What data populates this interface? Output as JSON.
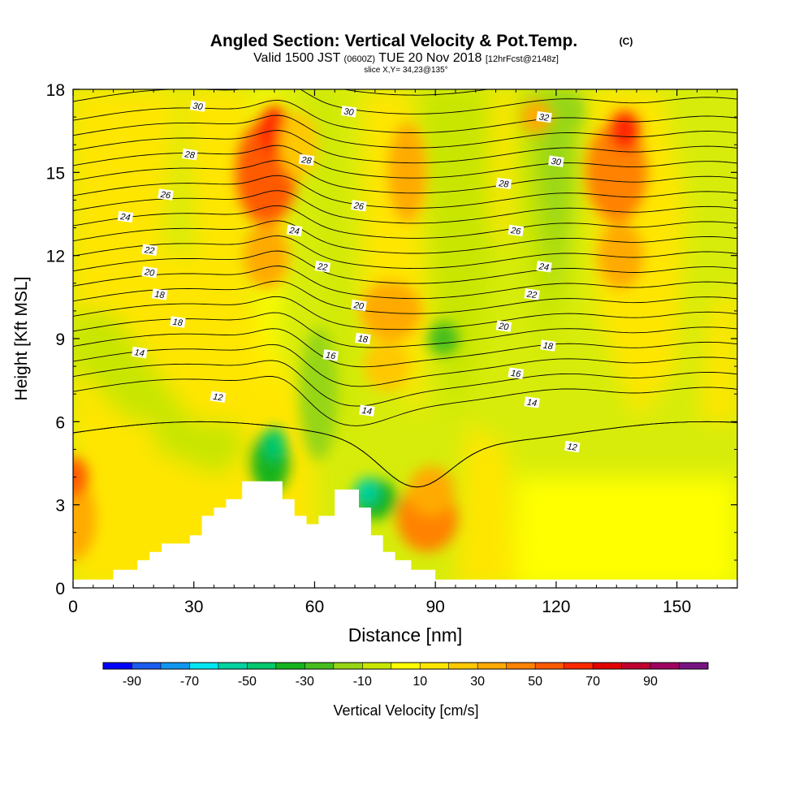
{
  "title": "Angled Section: Vertical Velocity & Pot.Temp.",
  "title_mark": "(C)",
  "subtitle_parts": [
    "Valid 1500 JST",
    "(0600Z)",
    "TUE 20 Nov 2018",
    "[12hrFcst@2148z]"
  ],
  "slice_label": "slice X,Y= 34,23@135°",
  "chart_data": {
    "type": "heatmap",
    "xlabel": "Distance [nm]",
    "ylabel": "Height [Kft MSL]",
    "xlim": [
      0,
      165
    ],
    "ylim": [
      0,
      18
    ],
    "x_ticks": [
      "0",
      "30",
      "60",
      "90",
      "120",
      "150"
    ],
    "y_ticks": [
      "0",
      "3",
      "6",
      "9",
      "12",
      "15",
      "18"
    ],
    "colorbar": {
      "label": "Vertical Velocity [cm/s]",
      "tick_labels": [
        "-90",
        "-70",
        "-50",
        "-30",
        "-10",
        "10",
        "30",
        "50",
        "70",
        "90"
      ],
      "levels": [
        -100,
        -90,
        -80,
        -70,
        -60,
        -50,
        -40,
        -30,
        -20,
        -10,
        0,
        10,
        20,
        30,
        40,
        50,
        60,
        70,
        80,
        90,
        100
      ],
      "colors": [
        "#0000ff",
        "#1a5cf0",
        "#0f96f0",
        "#00e6f0",
        "#00d2a0",
        "#00c86e",
        "#14b41e",
        "#46be1e",
        "#96d614",
        "#c8e600",
        "#ffff00",
        "#ffe600",
        "#ffc800",
        "#ffaa00",
        "#ff8200",
        "#ff5a00",
        "#ff2800",
        "#e00000",
        "#c00030",
        "#a00060",
        "#781482"
      ]
    },
    "theta_contours": {
      "units": "C",
      "levels": [
        12,
        14,
        16,
        18,
        20,
        22,
        24,
        26,
        28,
        30,
        32
      ],
      "labels": [
        {
          "text": "30",
          "x": 31,
          "y": 17.4
        },
        {
          "text": "28",
          "x": 29,
          "y": 15.65
        },
        {
          "text": "26",
          "x": 23,
          "y": 14.2
        },
        {
          "text": "24",
          "x": 13,
          "y": 13.4
        },
        {
          "text": "22",
          "x": 19,
          "y": 12.2
        },
        {
          "text": "20",
          "x": 19,
          "y": 11.4
        },
        {
          "text": "18",
          "x": 21.5,
          "y": 10.6
        },
        {
          "text": "18",
          "x": 26,
          "y": 9.6
        },
        {
          "text": "14",
          "x": 16.5,
          "y": 8.5
        },
        {
          "text": "12",
          "x": 36,
          "y": 6.9
        },
        {
          "text": "30",
          "x": 68.5,
          "y": 17.2
        },
        {
          "text": "28",
          "x": 58,
          "y": 15.45
        },
        {
          "text": "26",
          "x": 71,
          "y": 13.8
        },
        {
          "text": "24",
          "x": 55,
          "y": 12.9
        },
        {
          "text": "22",
          "x": 62,
          "y": 11.6
        },
        {
          "text": "20",
          "x": 71,
          "y": 10.2
        },
        {
          "text": "18",
          "x": 72,
          "y": 9.0
        },
        {
          "text": "16",
          "x": 64,
          "y": 8.4
        },
        {
          "text": "14",
          "x": 73,
          "y": 6.4
        },
        {
          "text": "32",
          "x": 117,
          "y": 17.0
        },
        {
          "text": "30",
          "x": 120,
          "y": 15.4
        },
        {
          "text": "28",
          "x": 107,
          "y": 14.6
        },
        {
          "text": "26",
          "x": 110,
          "y": 12.9
        },
        {
          "text": "24",
          "x": 117,
          "y": 11.6
        },
        {
          "text": "22",
          "x": 114,
          "y": 10.6
        },
        {
          "text": "20",
          "x": 107,
          "y": 9.45
        },
        {
          "text": "18",
          "x": 118,
          "y": 8.75
        },
        {
          "text": "16",
          "x": 110,
          "y": 7.75
        },
        {
          "text": "14",
          "x": 114,
          "y": 6.7
        },
        {
          "text": "12",
          "x": 124,
          "y": 5.1
        }
      ]
    },
    "terrain": [
      [
        0,
        0.3
      ],
      [
        10,
        0.3
      ],
      [
        10,
        0.65
      ],
      [
        16,
        0.65
      ],
      [
        16,
        1.0
      ],
      [
        19,
        1.0
      ],
      [
        19,
        1.3
      ],
      [
        22,
        1.3
      ],
      [
        22,
        1.6
      ],
      [
        29,
        1.6
      ],
      [
        29,
        1.9
      ],
      [
        32,
        1.9
      ],
      [
        32,
        2.6
      ],
      [
        35,
        2.6
      ],
      [
        35,
        2.9
      ],
      [
        38,
        2.9
      ],
      [
        38,
        3.2
      ],
      [
        42,
        3.2
      ],
      [
        42,
        3.85
      ],
      [
        52,
        3.85
      ],
      [
        52,
        3.2
      ],
      [
        55,
        3.2
      ],
      [
        55,
        2.6
      ],
      [
        58,
        2.6
      ],
      [
        58,
        2.3
      ],
      [
        61,
        2.3
      ],
      [
        61,
        2.6
      ],
      [
        65,
        2.6
      ],
      [
        65,
        3.55
      ],
      [
        71,
        3.55
      ],
      [
        71,
        2.9
      ],
      [
        74,
        2.9
      ],
      [
        74,
        1.9
      ],
      [
        77,
        1.9
      ],
      [
        77,
        1.3
      ],
      [
        80,
        1.3
      ],
      [
        80,
        1.0
      ],
      [
        84,
        1.0
      ],
      [
        84,
        0.65
      ],
      [
        90,
        0.65
      ],
      [
        90,
        0.3
      ],
      [
        165,
        0.3
      ]
    ]
  }
}
